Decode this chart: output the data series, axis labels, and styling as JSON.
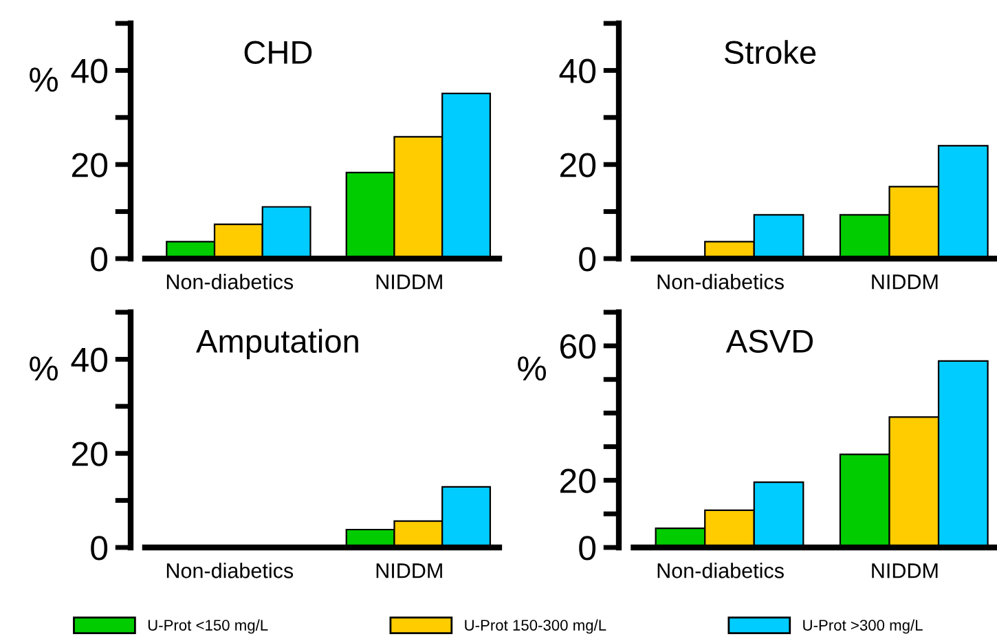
{
  "chart_data": [
    {
      "type": "bar",
      "title": "CHD",
      "ylabel": "%",
      "categories": [
        "Non-diabetics",
        "NIDDM"
      ],
      "series": [
        {
          "name": "U-Prot <150 mg/L",
          "color": "#00cc00",
          "values": [
            3.6,
            18.3
          ]
        },
        {
          "name": "U-Prot 150-300 mg/L",
          "color": "#ffcc00",
          "values": [
            7.3,
            25.9
          ]
        },
        {
          "name": "U-Prot >300 mg/L",
          "color": "#00ccff",
          "values": [
            11.0,
            35.1
          ]
        }
      ],
      "ylim": [
        0,
        50
      ],
      "yticks": [
        0,
        {
          "value": 10,
          "label": null
        },
        20,
        {
          "value": 30,
          "label": null
        },
        40,
        {
          "value": 50,
          "label": null
        }
      ],
      "grid": false,
      "legend": "bottom"
    },
    {
      "type": "bar",
      "title": "Stroke",
      "categories": [
        "Non-diabetics",
        "NIDDM"
      ],
      "series": [
        {
          "name": "U-Prot <150 mg/L",
          "color": "#00cc00",
          "values": [
            0,
            9.3
          ]
        },
        {
          "name": "U-Prot 150-300 mg/L",
          "color": "#ffcc00",
          "values": [
            3.6,
            15.3
          ]
        },
        {
          "name": "U-Prot >300 mg/L",
          "color": "#00ccff",
          "values": [
            9.3,
            24.0
          ]
        }
      ],
      "ylim": [
        0,
        50
      ],
      "yticks": [
        0,
        {
          "value": 10,
          "label": null
        },
        20,
        {
          "value": 30,
          "label": null
        },
        40,
        {
          "value": 50,
          "label": null
        }
      ],
      "grid": false,
      "legend": "bottom"
    },
    {
      "type": "bar",
      "title": "Amputation",
      "ylabel": "%",
      "categories": [
        "Non-diabetics",
        "NIDDM"
      ],
      "series": [
        {
          "name": "U-Prot <150 mg/L",
          "color": "#00cc00",
          "values": [
            0,
            3.8
          ]
        },
        {
          "name": "U-Prot 150-300 mg/L",
          "color": "#ffcc00",
          "values": [
            0,
            5.6
          ]
        },
        {
          "name": "U-Prot >300 mg/L",
          "color": "#00ccff",
          "values": [
            0,
            12.9
          ]
        }
      ],
      "ylim": [
        0,
        50
      ],
      "yticks": [
        0,
        {
          "value": 10,
          "label": null
        },
        20,
        {
          "value": 30,
          "label": null
        },
        40,
        {
          "value": 50,
          "label": null
        }
      ],
      "grid": false,
      "legend": "bottom"
    },
    {
      "type": "bar",
      "title": "ASVD",
      "ylabel": "%",
      "categories": [
        "Non-diabetics",
        "NIDDM"
      ],
      "series": [
        {
          "name": "U-Prot <150 mg/L",
          "color": "#00cc00",
          "values": [
            5.7,
            27.7
          ]
        },
        {
          "name": "U-Prot 150-300 mg/L",
          "color": "#ffcc00",
          "values": [
            11.1,
            38.8
          ]
        },
        {
          "name": "U-Prot >300 mg/L",
          "color": "#00ccff",
          "values": [
            19.4,
            55.5
          ]
        }
      ],
      "ylim": [
        0,
        70
      ],
      "yticks": [
        0,
        {
          "value": 10,
          "label": null
        },
        20,
        {
          "value": 30,
          "label": null
        },
        {
          "value": 40,
          "label": null
        },
        {
          "value": 50,
          "label": null
        },
        60,
        {
          "value": 70,
          "label": null
        }
      ],
      "grid": false,
      "legend": "bottom"
    }
  ]
}
